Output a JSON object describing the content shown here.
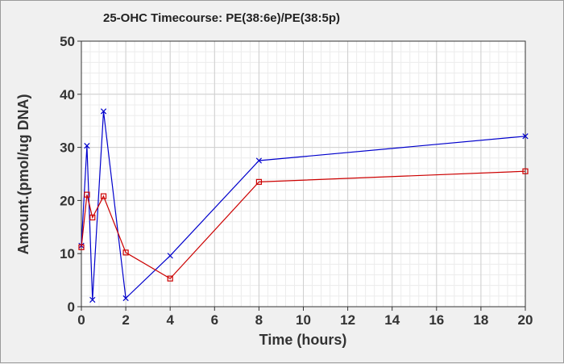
{
  "chart_data": {
    "type": "line",
    "title": "25-OHC Timecourse: PE(38:6e)/PE(38:5p)",
    "xlabel": "Time (hours)",
    "ylabel": "Amount.(pmol/ug DNA)",
    "xlim": [
      0,
      20
    ],
    "ylim": [
      0,
      50
    ],
    "xticks": [
      0,
      2,
      4,
      6,
      8,
      10,
      12,
      14,
      16,
      18,
      20
    ],
    "yticks": [
      0,
      10,
      20,
      30,
      40,
      50
    ],
    "grid": true,
    "legend": "none",
    "series": [
      {
        "color": "#0000cc",
        "marker": "x",
        "points": [
          [
            0,
            11.5
          ],
          [
            0.25,
            30.3
          ],
          [
            0.5,
            1.3
          ],
          [
            1,
            36.8
          ],
          [
            2,
            1.6
          ],
          [
            4,
            9.6
          ],
          [
            8,
            27.5
          ],
          [
            20,
            32.1
          ]
        ]
      },
      {
        "color": "#cc0000",
        "marker": "square",
        "points": [
          [
            0,
            11.2
          ],
          [
            0.25,
            21.1
          ],
          [
            0.5,
            16.8
          ],
          [
            1,
            20.8
          ],
          [
            2,
            10.2
          ],
          [
            4,
            5.3
          ],
          [
            8,
            23.5
          ],
          [
            20,
            25.5
          ]
        ]
      }
    ]
  }
}
